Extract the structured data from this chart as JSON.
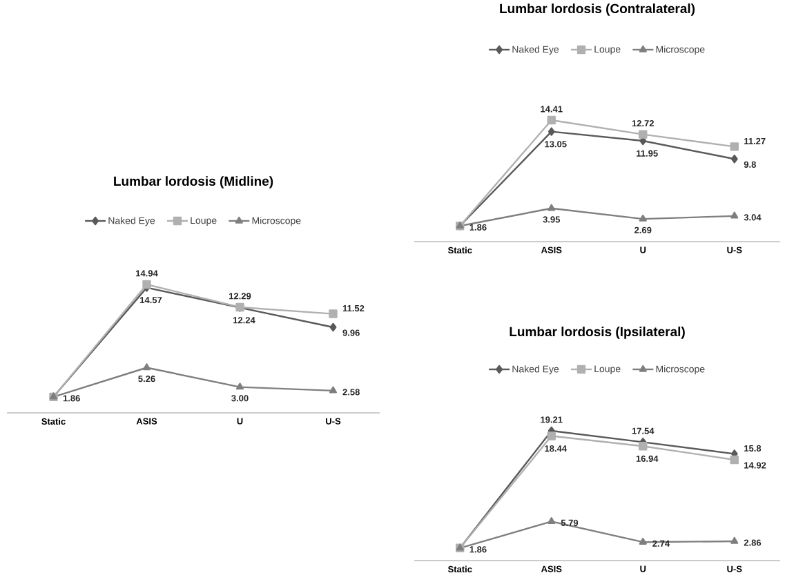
{
  "chart_data": [
    {
      "type": "line",
      "title": "Lumbar lordosis (Midline)",
      "categories": [
        "Static",
        "ASIS",
        "U",
        "U-S"
      ],
      "legend": "top",
      "line_style": "solid",
      "series": [
        {
          "name": "Naked Eye",
          "color": "#595959",
          "marker": "diamond",
          "values": [
            1.86,
            14.57,
            12.24,
            9.96
          ],
          "value_labels": [
            null,
            "14.57",
            "12.24",
            "9.96"
          ]
        },
        {
          "name": "Loupe",
          "color": "#b0b0b0",
          "marker": "square",
          "values": [
            1.86,
            14.94,
            12.29,
            11.52
          ],
          "value_labels": [
            null,
            "14.94",
            "12.29",
            "11.52"
          ]
        },
        {
          "name": "Microscope",
          "color": "#7f7f7f",
          "marker": "triangle",
          "values": [
            1.86,
            5.26,
            3.0,
            2.58
          ],
          "value_labels": [
            "1.86",
            "5.26",
            "3.00",
            "2.58"
          ]
        }
      ]
    },
    {
      "type": "line",
      "title": "Lumbar lordosis (Contralateral)",
      "categories": [
        "Static",
        "ASIS",
        "U",
        "U-S"
      ],
      "legend": "top",
      "line_style": "solid",
      "series": [
        {
          "name": "Naked Eye",
          "color": "#595959",
          "marker": "diamond",
          "values": [
            1.86,
            13.05,
            11.95,
            9.8
          ],
          "value_labels": [
            null,
            "13.05",
            "11.95",
            "9.8"
          ]
        },
        {
          "name": "Loupe",
          "color": "#b0b0b0",
          "marker": "square",
          "values": [
            1.86,
            14.41,
            12.72,
            11.27
          ],
          "value_labels": [
            null,
            "14.41",
            "12.72",
            "11.27"
          ]
        },
        {
          "name": "Microscope",
          "color": "#7f7f7f",
          "marker": "triangle",
          "values": [
            1.86,
            3.95,
            2.69,
            3.04
          ],
          "value_labels": [
            "1.86",
            "3.95",
            "2.69",
            "3.04"
          ]
        }
      ]
    },
    {
      "type": "line",
      "title": "Lumbar lordosis (Ipsilateral)",
      "categories": [
        "Static",
        "ASIS",
        "U",
        "U-S"
      ],
      "legend": "top",
      "line_style": "solid",
      "series": [
        {
          "name": "Naked Eye",
          "color": "#595959",
          "marker": "diamond",
          "values": [
            1.86,
            19.21,
            17.54,
            15.8
          ],
          "value_labels": [
            null,
            "19.21",
            "17.54",
            "15.8"
          ]
        },
        {
          "name": "Loupe",
          "color": "#b0b0b0",
          "marker": "square",
          "values": [
            1.86,
            18.44,
            16.94,
            14.92
          ],
          "value_labels": [
            null,
            "18.44",
            "16.94",
            "14.92"
          ]
        },
        {
          "name": "Microscope",
          "color": "#7f7f7f",
          "marker": "triangle",
          "values": [
            1.86,
            5.79,
            2.74,
            2.86
          ],
          "value_labels": [
            "1.86",
            "5.79",
            "2.74",
            "2.86"
          ]
        }
      ]
    }
  ]
}
